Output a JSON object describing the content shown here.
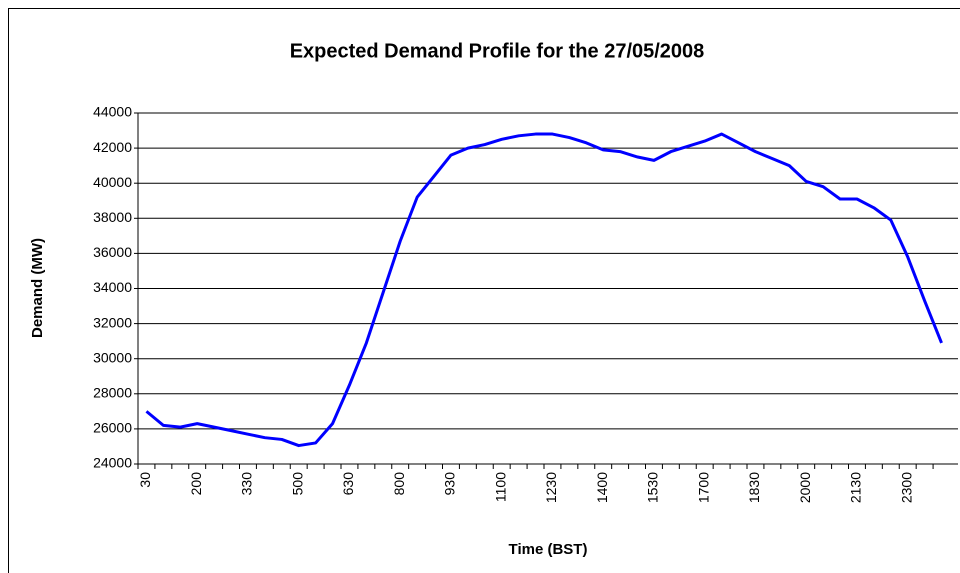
{
  "chart_data": {
    "type": "line",
    "title": "Expected Demand Profile for the 27/05/2008",
    "x_label": "Time (BST)",
    "y_label": "Demand (MW)",
    "categories": [
      "30",
      null,
      null,
      "200",
      null,
      null,
      "330",
      null,
      null,
      "500",
      null,
      null,
      "630",
      null,
      null,
      "800",
      null,
      null,
      "930",
      null,
      null,
      "1100",
      null,
      null,
      "1230",
      null,
      null,
      "1400",
      null,
      null,
      "1530",
      null,
      null,
      "1700",
      null,
      null,
      "1830",
      null,
      null,
      "2000",
      null,
      null,
      "2130",
      null,
      null,
      "2300",
      null,
      null
    ],
    "series": [
      {
        "name": "Demand",
        "color": "#0000ff",
        "values": [
          27000,
          26200,
          26100,
          26300,
          26100,
          25900,
          25700,
          25500,
          25400,
          25050,
          25200,
          26300,
          28500,
          30900,
          33800,
          36700,
          39200,
          40400,
          41600,
          42000,
          42200,
          42500,
          42700,
          42800,
          42800,
          42600,
          42300,
          41900,
          41800,
          41500,
          41300,
          41800,
          42100,
          42400,
          42800,
          42300,
          41800,
          41400,
          41000,
          40100,
          39800,
          39100,
          39100,
          38600,
          37900,
          35800,
          33300,
          30900
        ]
      }
    ],
    "ylim": [
      24000,
      44000
    ],
    "yticks": [
      24000,
      26000,
      28000,
      30000,
      32000,
      34000,
      36000,
      38000,
      40000,
      42000,
      44000
    ],
    "grid": true
  }
}
